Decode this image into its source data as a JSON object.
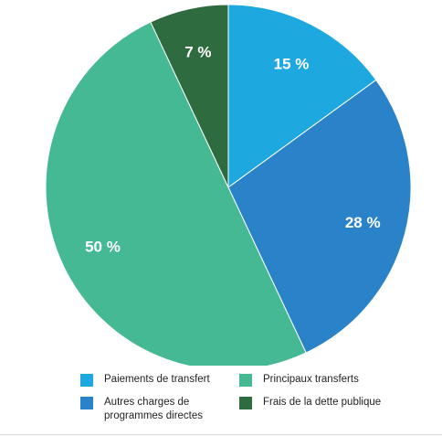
{
  "chart_data": {
    "type": "pie",
    "title": "",
    "slices": [
      {
        "name": "Paiements de transfert",
        "value": 15,
        "label": "15 %",
        "color": "#1ea8e0"
      },
      {
        "name": "Autres charges de programmes directes",
        "value": 28,
        "label": "28 %",
        "color": "#2a83c8"
      },
      {
        "name": "Principaux transferts",
        "value": 50,
        "label": "50 %",
        "color": "#45b994"
      },
      {
        "name": "Frais de la dette publique",
        "value": 7,
        "label": "7 %",
        "color": "#2e6b3e"
      }
    ],
    "start_angle_deg": 0,
    "direction": "clockwise",
    "legend_position": "bottom"
  },
  "legend": {
    "items": [
      {
        "label": "Paiements de transfert",
        "color": "#1ea8e0"
      },
      {
        "label": "Principaux transferts",
        "color": "#45b994"
      },
      {
        "label": "Autres charges de programmes directes",
        "color": "#2a83c8"
      },
      {
        "label": "Frais de la dette publique",
        "color": "#2e6b3e"
      }
    ]
  }
}
